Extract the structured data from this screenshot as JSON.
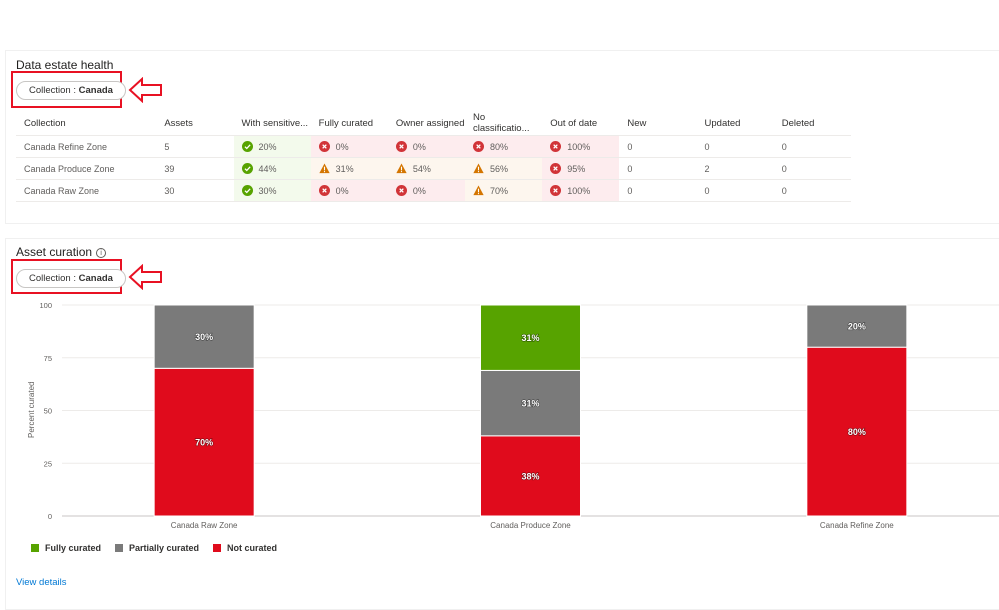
{
  "health": {
    "title": "Data estate health",
    "filter_label": "Collection : ",
    "filter_value": "Canada",
    "columns": [
      "Collection",
      "Assets",
      "With sensitive...",
      "Fully curated",
      "Owner assigned",
      "No classificatio...",
      "Out of date",
      "New",
      "Updated",
      "Deleted"
    ],
    "rows": [
      {
        "collection": "Canada Refine Zone",
        "assets": "5",
        "sensitive": {
          "status": "ok",
          "value": "20%"
        },
        "curated": {
          "status": "err",
          "value": "0%"
        },
        "owner": {
          "status": "err",
          "value": "0%"
        },
        "noclass": {
          "status": "err",
          "value": "80%"
        },
        "outdated": {
          "status": "err",
          "value": "100%"
        },
        "new": "0",
        "updated": "0",
        "deleted": "0"
      },
      {
        "collection": "Canada Produce Zone",
        "assets": "39",
        "sensitive": {
          "status": "ok",
          "value": "44%"
        },
        "curated": {
          "status": "warn",
          "value": "31%"
        },
        "owner": {
          "status": "warn",
          "value": "54%"
        },
        "noclass": {
          "status": "warn",
          "value": "56%"
        },
        "outdated": {
          "status": "err",
          "value": "95%"
        },
        "new": "0",
        "updated": "2",
        "deleted": "0"
      },
      {
        "collection": "Canada Raw Zone",
        "assets": "30",
        "sensitive": {
          "status": "ok",
          "value": "30%"
        },
        "curated": {
          "status": "err",
          "value": "0%"
        },
        "owner": {
          "status": "err",
          "value": "0%"
        },
        "noclass": {
          "status": "warn",
          "value": "70%"
        },
        "outdated": {
          "status": "err",
          "value": "100%"
        },
        "new": "0",
        "updated": "0",
        "deleted": "0"
      }
    ]
  },
  "curation": {
    "title": "Asset curation",
    "info_icon": "info-icon",
    "filter_label": "Collection : ",
    "filter_value": "Canada",
    "view_details": "View details"
  },
  "colors": {
    "fully": "#57a300",
    "partial": "#7a7a7a",
    "not": "#e00b1c",
    "highlight_box": "#e81123",
    "link": "#0078d4"
  },
  "chart_data": {
    "type": "bar",
    "stacked": true,
    "categories": [
      "Canada Raw Zone",
      "Canada Produce Zone",
      "Canada Refine Zone"
    ],
    "series": [
      {
        "name": "Not curated",
        "color": "#e00b1c",
        "values": [
          70,
          38,
          80
        ]
      },
      {
        "name": "Partially curated",
        "color": "#7a7a7a",
        "values": [
          30,
          31,
          20
        ]
      },
      {
        "name": "Fully curated",
        "color": "#57a300",
        "values": [
          0,
          31,
          0
        ]
      }
    ],
    "legend_order": [
      "Fully curated",
      "Partially curated",
      "Not curated"
    ],
    "ylabel": "Percent curated",
    "yticks": [
      0,
      25,
      50,
      75,
      100
    ],
    "ylim": [
      0,
      100
    ],
    "grid": true,
    "legend_position": "bottom-left"
  }
}
